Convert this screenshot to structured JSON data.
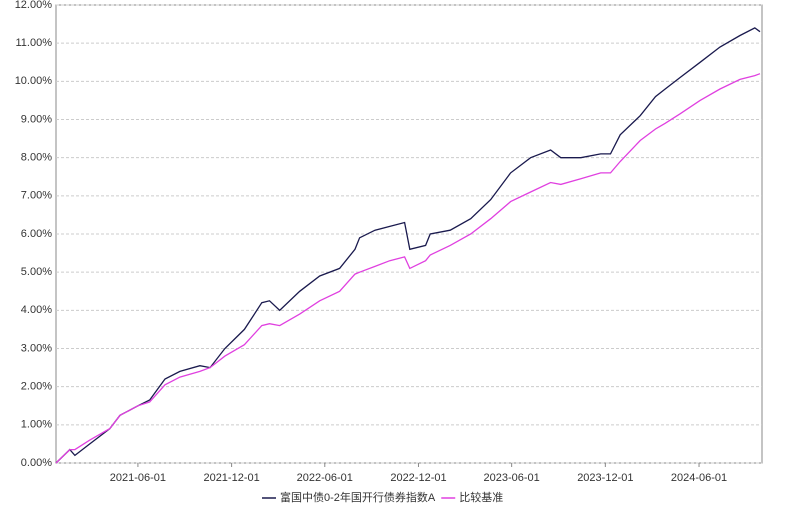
{
  "chart_data": {
    "type": "line",
    "x": [
      "2020-12-23",
      "2021-01-19",
      "2021-01-29",
      "2021-02-27",
      "2021-04-07",
      "2021-04-27",
      "2021-06-01",
      "2021-06-24",
      "2021-07-24",
      "2021-08-22",
      "2021-09-30",
      "2021-10-20",
      "2021-11-18",
      "2021-12-26",
      "2022-01-29",
      "2022-02-13",
      "2022-03-05",
      "2022-04-13",
      "2022-05-22",
      "2022-06-30",
      "2022-07-30",
      "2022-08-08",
      "2022-09-07",
      "2022-10-06",
      "2022-11-04",
      "2022-11-14",
      "2022-12-15",
      "2022-12-24",
      "2023-02-01",
      "2023-03-13",
      "2023-04-21",
      "2023-05-30",
      "2023-07-08",
      "2023-08-16",
      "2023-09-05",
      "2023-10-14",
      "2023-11-22",
      "2023-12-11",
      "2023-12-30",
      "2024-02-07",
      "2024-03-08",
      "2024-03-27",
      "2024-04-25",
      "2024-06-03",
      "2024-07-12",
      "2024-08-20",
      "2024-09-18",
      "2024-09-28"
    ],
    "series": [
      {
        "name": "富国中债0-2年国开行债券指数A",
        "color": "#1a1a4e",
        "values": [
          0,
          0.35,
          0.2,
          0.5,
          0.9,
          1.25,
          1.5,
          1.65,
          2.2,
          2.4,
          2.55,
          2.5,
          3.0,
          3.5,
          4.2,
          4.25,
          4.0,
          4.5,
          4.9,
          5.1,
          5.6,
          5.9,
          6.1,
          6.2,
          6.3,
          5.6,
          5.7,
          6.0,
          6.1,
          6.4,
          6.9,
          7.6,
          8.0,
          8.2,
          8.0,
          8.0,
          8.1,
          8.1,
          8.6,
          9.1,
          9.6,
          9.8,
          10.1,
          10.5,
          10.9,
          11.2,
          11.4,
          11.3
        ]
      },
      {
        "name": "比较基准",
        "color": "#e040e0",
        "values": [
          0,
          0.35,
          0.35,
          0.6,
          0.9,
          1.25,
          1.5,
          1.6,
          2.05,
          2.25,
          2.4,
          2.5,
          2.8,
          3.1,
          3.6,
          3.65,
          3.6,
          3.9,
          4.25,
          4.5,
          4.95,
          5.0,
          5.15,
          5.3,
          5.4,
          5.1,
          5.3,
          5.45,
          5.7,
          6.0,
          6.4,
          6.85,
          7.1,
          7.35,
          7.3,
          7.45,
          7.6,
          7.6,
          7.9,
          8.45,
          8.75,
          8.9,
          9.15,
          9.5,
          9.8,
          10.05,
          10.15,
          10.2
        ]
      }
    ],
    "xlim": [
      "2020-12-23",
      "2024-10-02"
    ],
    "xticks": [
      "2021-06-01",
      "2021-12-01",
      "2022-06-01",
      "2022-12-01",
      "2023-06-01",
      "2023-12-01",
      "2024-06-01"
    ],
    "ylim": [
      0,
      12
    ],
    "yticks": [
      {
        "value": 0,
        "label": "0.00%"
      },
      {
        "value": 1,
        "label": "1.00%"
      },
      {
        "value": 2,
        "label": "2.00%"
      },
      {
        "value": 3,
        "label": "3.00%"
      },
      {
        "value": 4,
        "label": "4.00%"
      },
      {
        "value": 5,
        "label": "5.00%"
      },
      {
        "value": 6,
        "label": "6.00%"
      },
      {
        "value": 7,
        "label": "7.00%"
      },
      {
        "value": 8,
        "label": "8.00%"
      },
      {
        "value": 9,
        "label": "9.00%"
      },
      {
        "value": 10,
        "label": "10.00%"
      },
      {
        "value": 11,
        "label": "11.00%"
      },
      {
        "value": 12,
        "label": "12.00%"
      }
    ],
    "grid": true,
    "legend": "bottom"
  }
}
